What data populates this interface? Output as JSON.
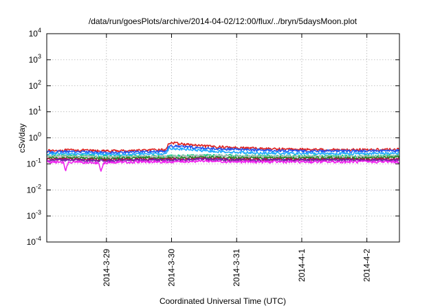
{
  "chart_data": {
    "type": "line",
    "title": "/data/run/goesPlots/archive/2014-04-02/12:00/flux/../bryn/5daysMoon.plot",
    "xlabel": "Coordinated Universal Time (UTC)",
    "ylabel": "cSv/day",
    "yscale": "log",
    "ylim": [
      0.0001,
      10000
    ],
    "y_ticks": [
      {
        "base": "10",
        "exp": "-4",
        "value": 0.0001
      },
      {
        "base": "10",
        "exp": "-3",
        "value": 0.001
      },
      {
        "base": "10",
        "exp": "-2",
        "value": 0.01
      },
      {
        "base": "10",
        "exp": "-1",
        "value": 0.1
      },
      {
        "base": "10",
        "exp": "0",
        "value": 1
      },
      {
        "base": "10",
        "exp": "1",
        "value": 10
      },
      {
        "base": "10",
        "exp": "2",
        "value": 100
      },
      {
        "base": "10",
        "exp": "3",
        "value": 1000
      },
      {
        "base": "10",
        "exp": "4",
        "value": 10000
      }
    ],
    "xlim": [
      "2014-03-28 02:00",
      "2014-04-02 12:00"
    ],
    "x_ticks": [
      "2014-3-29",
      "2014-3-30",
      "2014-3-31",
      "2014-4-1",
      "2014-4-2"
    ],
    "grid": true,
    "legend": "none",
    "series": [
      {
        "color": "#dd2222",
        "points": [
          [
            "2014-03-28 02:00",
            0.32
          ],
          [
            "2014-03-28 12:00",
            0.34
          ],
          [
            "2014-03-29 00:00",
            0.31
          ],
          [
            "2014-03-29 12:00",
            0.33
          ],
          [
            "2014-03-29 22:00",
            0.35
          ],
          [
            "2014-03-29 23:00",
            0.65
          ],
          [
            "2014-03-30 04:00",
            0.58
          ],
          [
            "2014-03-30 12:00",
            0.48
          ],
          [
            "2014-03-31 00:00",
            0.42
          ],
          [
            "2014-03-31 12:00",
            0.38
          ],
          [
            "2014-04-01 00:00",
            0.36
          ],
          [
            "2014-04-01 12:00",
            0.35
          ],
          [
            "2014-04-02 00:00",
            0.35
          ],
          [
            "2014-04-02 12:00",
            0.36
          ]
        ]
      },
      {
        "color": "#2255ee",
        "points": [
          [
            "2014-03-28 02:00",
            0.28
          ],
          [
            "2014-03-28 12:00",
            0.3
          ],
          [
            "2014-03-29 00:00",
            0.27
          ],
          [
            "2014-03-29 12:00",
            0.29
          ],
          [
            "2014-03-29 22:00",
            0.3
          ],
          [
            "2014-03-29 23:00",
            0.5
          ],
          [
            "2014-03-30 04:00",
            0.46
          ],
          [
            "2014-03-30 12:00",
            0.4
          ],
          [
            "2014-03-31 00:00",
            0.36
          ],
          [
            "2014-03-31 12:00",
            0.33
          ],
          [
            "2014-04-01 00:00",
            0.31
          ],
          [
            "2014-04-01 12:00",
            0.31
          ],
          [
            "2014-04-02 00:00",
            0.31
          ],
          [
            "2014-04-02 12:00",
            0.32
          ]
        ]
      },
      {
        "color": "#22aaff",
        "points": [
          [
            "2014-03-28 02:00",
            0.24
          ],
          [
            "2014-03-28 12:00",
            0.25
          ],
          [
            "2014-03-29 00:00",
            0.23
          ],
          [
            "2014-03-29 12:00",
            0.24
          ],
          [
            "2014-03-29 22:00",
            0.25
          ],
          [
            "2014-03-29 23:00",
            0.4
          ],
          [
            "2014-03-30 04:00",
            0.37
          ],
          [
            "2014-03-30 12:00",
            0.32
          ],
          [
            "2014-03-31 00:00",
            0.28
          ],
          [
            "2014-03-31 12:00",
            0.26
          ],
          [
            "2014-04-01 00:00",
            0.25
          ],
          [
            "2014-04-01 12:00",
            0.25
          ],
          [
            "2014-04-02 00:00",
            0.25
          ],
          [
            "2014-04-02 12:00",
            0.26
          ]
        ]
      },
      {
        "color": "#22cc88",
        "points": [
          [
            "2014-03-28 02:00",
            0.2
          ],
          [
            "2014-03-28 12:00",
            0.21
          ],
          [
            "2014-03-29 00:00",
            0.19
          ],
          [
            "2014-03-29 12:00",
            0.2
          ],
          [
            "2014-03-29 22:00",
            0.2
          ],
          [
            "2014-03-30 12:00",
            0.21
          ],
          [
            "2014-03-31 00:00",
            0.21
          ],
          [
            "2014-03-31 12:00",
            0.2
          ],
          [
            "2014-04-01 00:00",
            0.2
          ],
          [
            "2014-04-01 12:00",
            0.2
          ],
          [
            "2014-04-02 00:00",
            0.2
          ],
          [
            "2014-04-02 12:00",
            0.21
          ]
        ]
      },
      {
        "color": "#bbbbbb",
        "points": [
          [
            "2014-03-28 02:00",
            0.19
          ],
          [
            "2014-03-28 12:00",
            0.19
          ],
          [
            "2014-03-29 00:00",
            0.18
          ],
          [
            "2014-03-29 12:00",
            0.19
          ],
          [
            "2014-03-30 00:00",
            0.19
          ],
          [
            "2014-03-30 12:00",
            0.2
          ],
          [
            "2014-03-31 00:00",
            0.19
          ],
          [
            "2014-03-31 12:00",
            0.19
          ],
          [
            "2014-04-01 00:00",
            0.19
          ],
          [
            "2014-04-01 12:00",
            0.19
          ],
          [
            "2014-04-02 00:00",
            0.19
          ],
          [
            "2014-04-02 12:00",
            0.2
          ]
        ]
      },
      {
        "color": "#228822",
        "points": [
          [
            "2014-03-28 02:00",
            0.17
          ],
          [
            "2014-03-28 12:00",
            0.17
          ],
          [
            "2014-03-29 00:00",
            0.16
          ],
          [
            "2014-03-29 12:00",
            0.17
          ],
          [
            "2014-03-30 00:00",
            0.17
          ],
          [
            "2014-03-30 12:00",
            0.18
          ],
          [
            "2014-03-31 00:00",
            0.17
          ],
          [
            "2014-03-31 12:00",
            0.17
          ],
          [
            "2014-04-01 00:00",
            0.17
          ],
          [
            "2014-04-01 12:00",
            0.17
          ],
          [
            "2014-04-02 00:00",
            0.17
          ],
          [
            "2014-04-02 12:00",
            0.18
          ]
        ]
      },
      {
        "color": "#aa1144",
        "points": [
          [
            "2014-03-28 02:00",
            0.15
          ],
          [
            "2014-03-28 12:00",
            0.15
          ],
          [
            "2014-03-29 00:00",
            0.14
          ],
          [
            "2014-03-29 12:00",
            0.15
          ],
          [
            "2014-03-30 00:00",
            0.15
          ],
          [
            "2014-03-30 12:00",
            0.16
          ],
          [
            "2014-03-31 00:00",
            0.15
          ],
          [
            "2014-03-31 12:00",
            0.15
          ],
          [
            "2014-04-01 00:00",
            0.15
          ],
          [
            "2014-04-01 12:00",
            0.15
          ],
          [
            "2014-04-02 00:00",
            0.15
          ],
          [
            "2014-04-02 12:00",
            0.15
          ]
        ]
      },
      {
        "color": "#7722aa",
        "points": [
          [
            "2014-03-28 02:00",
            0.14
          ],
          [
            "2014-03-28 12:00",
            0.14
          ],
          [
            "2014-03-29 00:00",
            0.13
          ],
          [
            "2014-03-29 12:00",
            0.14
          ],
          [
            "2014-03-30 00:00",
            0.14
          ],
          [
            "2014-03-30 12:00",
            0.15
          ],
          [
            "2014-03-31 00:00",
            0.14
          ],
          [
            "2014-03-31 12:00",
            0.14
          ],
          [
            "2014-04-01 00:00",
            0.14
          ],
          [
            "2014-04-01 12:00",
            0.14
          ],
          [
            "2014-04-02 00:00",
            0.14
          ],
          [
            "2014-04-02 12:00",
            0.14
          ]
        ]
      },
      {
        "color": "#ee22ee",
        "points": [
          [
            "2014-03-28 02:00",
            0.12
          ],
          [
            "2014-03-28 08:00",
            0.115
          ],
          [
            "2014-03-28 09:00",
            0.06
          ],
          [
            "2014-03-28 10:00",
            0.115
          ],
          [
            "2014-03-28 12:00",
            0.12
          ],
          [
            "2014-03-28 21:00",
            0.11
          ],
          [
            "2014-03-28 22:00",
            0.055
          ],
          [
            "2014-03-28 23:00",
            0.11
          ],
          [
            "2014-03-29 12:00",
            0.12
          ],
          [
            "2014-03-30 00:00",
            0.12
          ],
          [
            "2014-03-30 12:00",
            0.13
          ],
          [
            "2014-03-31 00:00",
            0.12
          ],
          [
            "2014-03-31 12:00",
            0.12
          ],
          [
            "2014-04-01 00:00",
            0.12
          ],
          [
            "2014-04-01 12:00",
            0.12
          ],
          [
            "2014-04-02 00:00",
            0.12
          ],
          [
            "2014-04-02 12:00",
            0.12
          ]
        ]
      }
    ]
  }
}
